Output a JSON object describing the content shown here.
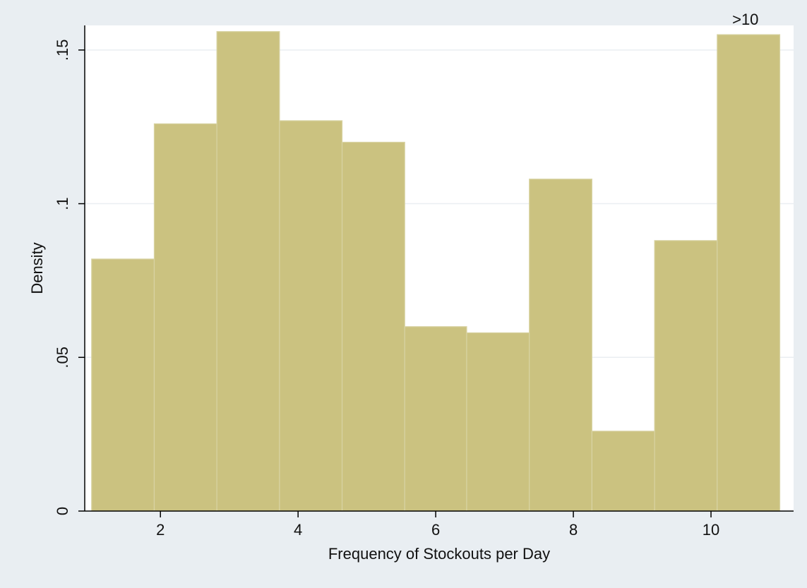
{
  "chart_data": {
    "type": "bar",
    "title": "",
    "xlabel": "Frequency of Stockouts per Day",
    "ylabel": "Density",
    "xlim": [
      0.9,
      11.2
    ],
    "ylim": [
      0,
      0.158
    ],
    "x_ticks": [
      2,
      4,
      6,
      8,
      10
    ],
    "x_tick_labels": [
      "2",
      "4",
      "6",
      "8",
      "10"
    ],
    "y_ticks": [
      0,
      0.05,
      0.1,
      0.15
    ],
    "y_tick_labels": [
      "0",
      ".05",
      ".1",
      ".15"
    ],
    "grid": true,
    "bins": [
      {
        "start": 1.0,
        "end": 1.91,
        "value": 0.082
      },
      {
        "start": 1.91,
        "end": 2.82,
        "value": 0.126
      },
      {
        "start": 2.82,
        "end": 3.73,
        "value": 0.156
      },
      {
        "start": 3.73,
        "end": 4.64,
        "value": 0.127
      },
      {
        "start": 4.64,
        "end": 5.55,
        "value": 0.12
      },
      {
        "start": 5.55,
        "end": 6.45,
        "value": 0.06
      },
      {
        "start": 6.45,
        "end": 7.36,
        "value": 0.058
      },
      {
        "start": 7.36,
        "end": 8.27,
        "value": 0.108
      },
      {
        "start": 8.27,
        "end": 9.18,
        "value": 0.026
      },
      {
        "start": 9.18,
        "end": 10.09,
        "value": 0.088
      },
      {
        "start": 10.09,
        "end": 11.0,
        "value": 0.155
      }
    ],
    "annotations": [
      {
        "text": ">10",
        "x": 10.5,
        "y": 0.155
      }
    ],
    "colors": {
      "bar_fill": "#cbc280",
      "bar_edge": "#d8d3a3",
      "plot_bg": "#ffffff",
      "outer_bg": "#e9eef2",
      "grid": "#eaeef2",
      "axis": "#000000"
    }
  }
}
